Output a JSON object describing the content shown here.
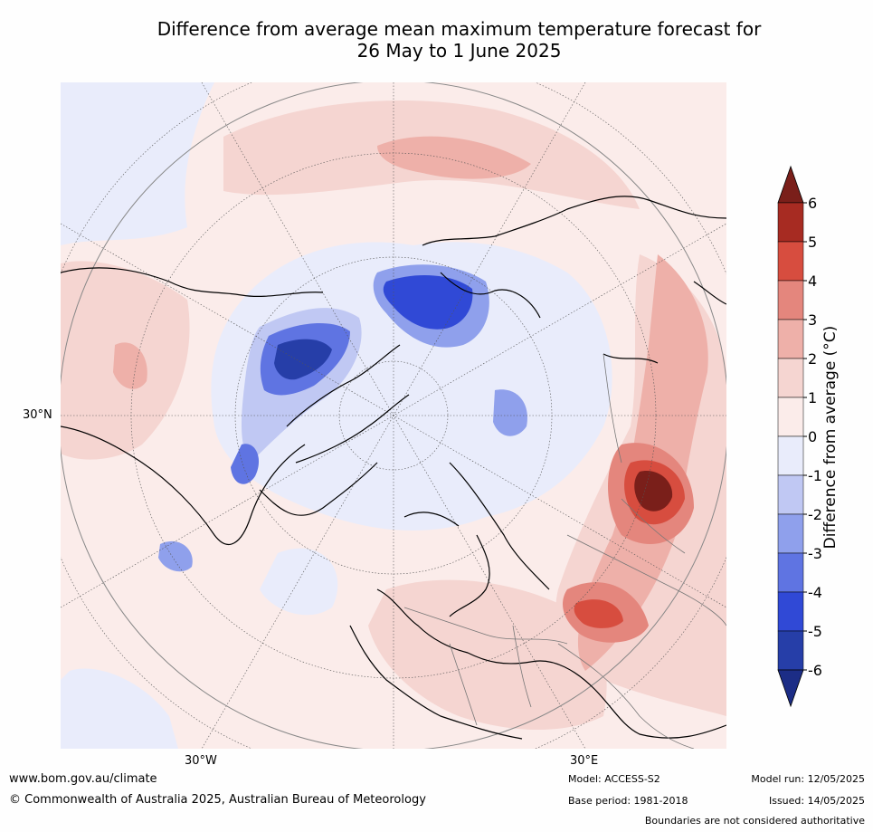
{
  "title": {
    "line1": "Difference from average mean maximum temperature forecast for",
    "line2": "26 May to 1 June 2025"
  },
  "map": {
    "lat_label": "30°N",
    "lon_labels": [
      "30°W",
      "30°E"
    ]
  },
  "colorbar": {
    "title": "Difference from average (°C)",
    "ticks": [
      "6",
      "5",
      "4",
      "3",
      "2",
      "1",
      "0",
      "-1",
      "-2",
      "-3",
      "-4",
      "-5",
      "-6"
    ],
    "colors": [
      "#7a1f1a",
      "#a72b22",
      "#d74d3f",
      "#e4867d",
      "#eeb0a9",
      "#f5d5d1",
      "#fbecea",
      "#e9ecfb",
      "#c0c8f3",
      "#8fa0ec",
      "#5f74e2",
      "#3049d6",
      "#263ea8",
      "#1c2d86"
    ]
  },
  "footer": {
    "website": "www.bom.gov.au/climate",
    "copyright": "© Commonwealth of Australia 2025, Australian Bureau of Meteorology",
    "model": "Model: ACCESS-S2",
    "base_period": "Base period: 1981-2018",
    "model_run": "Model run: 12/05/2025",
    "issued": "Issued: 14/05/2025",
    "disclaimer": "Boundaries are not considered authoritative"
  }
}
